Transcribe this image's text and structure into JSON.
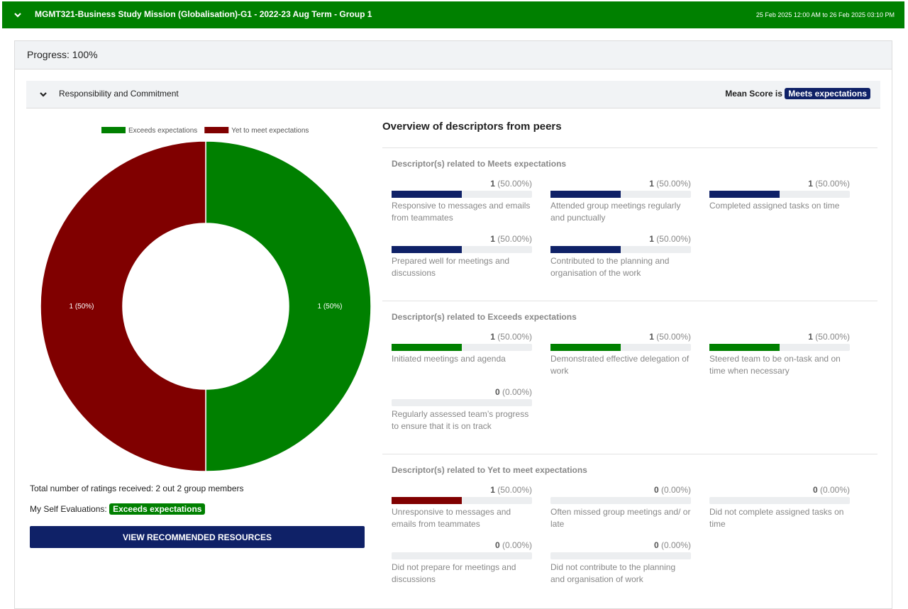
{
  "header": {
    "title": "MGMT321-Business Study Mission (Globalisation)-G1 - 2022-23 Aug Term - Group 1",
    "date_range": "25 Feb 2025 12:00 AM to 26 Feb 2025 03:10 PM"
  },
  "progress": "Progress: 100%",
  "section": {
    "title": "Responsibility and Commitment",
    "mean_score_label": "Mean Score is",
    "mean_score": "Meets expectations"
  },
  "chart_data": {
    "type": "pie",
    "donut": true,
    "categories": [
      "Exceeds expectations",
      "Yet to meet expectations"
    ],
    "values": [
      1,
      1
    ],
    "value_labels": [
      "1 (50%)",
      "1 (50%)"
    ],
    "colors": [
      "#008000",
      "#800000"
    ]
  },
  "summary": {
    "total_ratings": "Total number of ratings received: 2 out 2 group members",
    "self_eval_label": "My Self Evaluations:",
    "self_eval": "Exceeds expectations",
    "button": "VIEW RECOMMENDED RESOURCES"
  },
  "overview": {
    "title": "Overview of descriptors from peers",
    "groups": [
      {
        "title": "Descriptor(s) related to Meets expectations",
        "color": "#0f2167",
        "items": [
          {
            "text": "Responsive to messages and emails from teammates",
            "count": 1,
            "percent": 50,
            "percent_label": "(50.00%)"
          },
          {
            "text": "Attended group meetings regularly and punctually",
            "count": 1,
            "percent": 50,
            "percent_label": "(50.00%)"
          },
          {
            "text": "Completed assigned tasks on time",
            "count": 1,
            "percent": 50,
            "percent_label": "(50.00%)"
          },
          {
            "text": "Prepared well for meetings and discussions",
            "count": 1,
            "percent": 50,
            "percent_label": "(50.00%)"
          },
          {
            "text": "Contributed to the planning and organisation of the work",
            "count": 1,
            "percent": 50,
            "percent_label": "(50.00%)"
          }
        ]
      },
      {
        "title": "Descriptor(s) related to Exceeds expectations",
        "color": "#008000",
        "items": [
          {
            "text": "Initiated meetings and agenda",
            "count": 1,
            "percent": 50,
            "percent_label": "(50.00%)"
          },
          {
            "text": "Demonstrated effective delegation of work",
            "count": 1,
            "percent": 50,
            "percent_label": "(50.00%)"
          },
          {
            "text": "Steered team to be on-task and on time when necessary",
            "count": 1,
            "percent": 50,
            "percent_label": "(50.00%)"
          },
          {
            "text": "Regularly assessed team’s progress to ensure that it is on track",
            "count": 0,
            "percent": 0,
            "percent_label": "(0.00%)"
          }
        ]
      },
      {
        "title": "Descriptor(s) related to Yet to meet expectations",
        "color": "#800000",
        "items": [
          {
            "text": "Unresponsive to messages and emails from teammates",
            "count": 1,
            "percent": 50,
            "percent_label": "(50.00%)"
          },
          {
            "text": "Often missed group meetings and/ or late",
            "count": 0,
            "percent": 0,
            "percent_label": "(0.00%)"
          },
          {
            "text": "Did not complete assigned tasks on time",
            "count": 0,
            "percent": 0,
            "percent_label": "(0.00%)"
          },
          {
            "text": "Did not prepare for meetings and discussions",
            "count": 0,
            "percent": 0,
            "percent_label": "(0.00%)"
          },
          {
            "text": "Did not contribute to the planning and organisation of work",
            "count": 0,
            "percent": 0,
            "percent_label": "(0.00%)"
          }
        ]
      }
    ]
  }
}
